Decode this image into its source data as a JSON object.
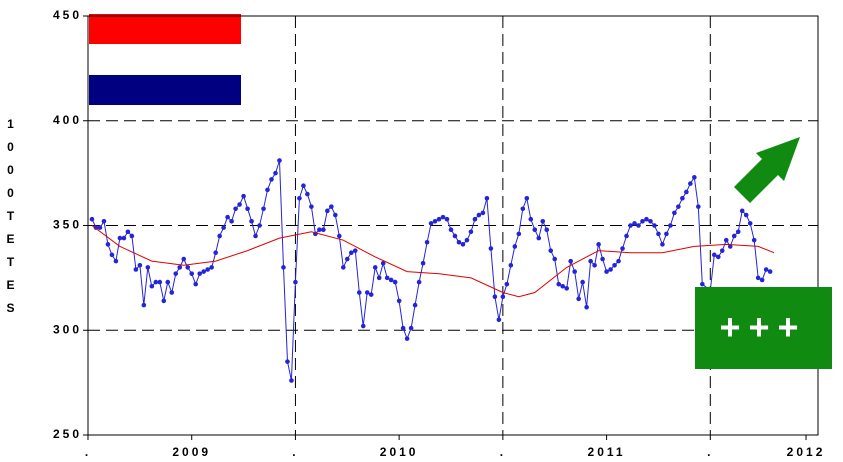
{
  "chart_data": {
    "type": "line",
    "y_label": "1000 TETES",
    "annotation": "+++",
    "xlim": [
      0,
      183
    ],
    "xticks": [
      {
        "value": 0,
        "label": "."
      },
      {
        "value": 26,
        "label": "2009"
      },
      {
        "value": 52,
        "label": "."
      },
      {
        "value": 78,
        "label": "2010"
      },
      {
        "value": 104,
        "label": "."
      },
      {
        "value": 130,
        "label": "2011"
      },
      {
        "value": 156,
        "label": "."
      },
      {
        "value": 180,
        "label": "2012"
      }
    ],
    "ylim": [
      250,
      450
    ],
    "yticks": [
      250,
      300,
      350,
      400,
      450
    ],
    "grid": true,
    "series": [
      {
        "color": "#2424d8",
        "markers": true,
        "x": [
          1,
          2,
          3,
          4,
          5,
          6,
          7,
          8,
          9,
          10,
          11,
          12,
          13,
          14,
          15,
          16,
          17,
          18,
          19,
          20,
          21,
          22,
          23,
          24,
          25,
          26,
          27,
          28,
          29,
          30,
          31,
          32,
          33,
          34,
          35,
          36,
          37,
          38,
          39,
          40,
          41,
          42,
          43,
          44,
          45,
          46,
          47,
          48,
          49,
          50,
          51,
          52,
          53,
          54,
          55,
          56,
          57,
          58,
          59,
          60,
          61,
          62,
          63,
          64,
          65,
          66,
          67,
          68,
          69,
          70,
          71,
          72,
          73,
          74,
          75,
          76,
          77,
          78,
          79,
          80,
          81,
          82,
          83,
          84,
          85,
          86,
          87,
          88,
          89,
          90,
          91,
          92,
          93,
          94,
          95,
          96,
          97,
          98,
          99,
          100,
          101,
          102,
          103,
          104,
          105,
          106,
          107,
          108,
          109,
          110,
          111,
          112,
          113,
          114,
          115,
          116,
          117,
          118,
          119,
          120,
          121,
          122,
          123,
          124,
          125,
          126,
          127,
          128,
          129,
          130,
          131,
          132,
          133,
          134,
          135,
          136,
          137,
          138,
          139,
          140,
          141,
          142,
          143,
          144,
          145,
          146,
          147,
          148,
          149,
          150,
          151,
          152,
          153,
          154,
          156,
          157,
          158,
          159,
          160,
          161,
          162,
          163,
          164,
          165,
          166,
          167,
          168,
          169,
          170,
          171
        ],
        "values": [
          353,
          349,
          349,
          352,
          341,
          336,
          333,
          344,
          344,
          347,
          345,
          329,
          331,
          312,
          330,
          321,
          323,
          323,
          314,
          323,
          318,
          327,
          330,
          334,
          330,
          327,
          322,
          327,
          328,
          329,
          330,
          337,
          345,
          349,
          354,
          352,
          358,
          360,
          364,
          358,
          352,
          345,
          350,
          358,
          367,
          372,
          375,
          381,
          330,
          285,
          276,
          323,
          363,
          369,
          365,
          359,
          346,
          348,
          348,
          357,
          359,
          355,
          345,
          330,
          334,
          337,
          338,
          318,
          302,
          318,
          317,
          330,
          325,
          332,
          325,
          324,
          323,
          314,
          301,
          296,
          301,
          312,
          323,
          332,
          342,
          351,
          352,
          353,
          354,
          353,
          348,
          345,
          342,
          341,
          343,
          347,
          353,
          355,
          356,
          363,
          339,
          316,
          305,
          316,
          322,
          331,
          340,
          346,
          358,
          363,
          353,
          348,
          344,
          352,
          348,
          338,
          334,
          322,
          321,
          320,
          333,
          328,
          315,
          323,
          311,
          333,
          331,
          341,
          334,
          328,
          329,
          331,
          333,
          339,
          345,
          350,
          351,
          350,
          352,
          353,
          352,
          350,
          346,
          341,
          346,
          350,
          356,
          359,
          363,
          366,
          370,
          373,
          359,
          322,
          319,
          336,
          335,
          338,
          343,
          340,
          345,
          347,
          357,
          355,
          351,
          343,
          325,
          324,
          329,
          328
        ]
      },
      {
        "color": "#e00000",
        "markers": false,
        "x": [
          1,
          8,
          16,
          24,
          32,
          40,
          48,
          56,
          64,
          72,
          80,
          88,
          96,
          104,
          108,
          112,
          120,
          128,
          136,
          144,
          152,
          160,
          168,
          172
        ],
        "values": [
          350,
          340,
          333,
          331,
          333,
          338,
          344,
          347,
          343,
          335,
          328,
          327,
          325,
          318,
          316,
          318,
          330,
          338,
          337,
          337,
          340,
          341,
          340,
          337
        ]
      }
    ]
  }
}
